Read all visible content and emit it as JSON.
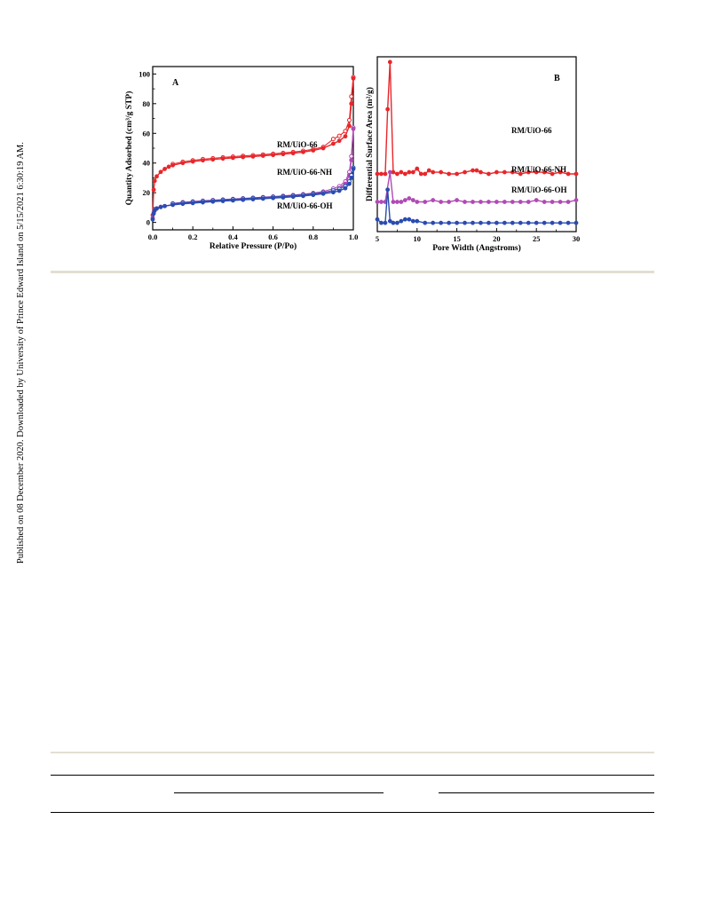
{
  "side_note": "Published on 08 December 2020. Downloaded by University of Prince Edward Island on 5/15/2021 6:30:19 AM.",
  "colors": {
    "red": "#e8262a",
    "magenta": "#b04ab4",
    "blue": "#2a4cb0",
    "rule_tan": "#e2dfd2"
  },
  "chart_data": [
    {
      "type": "line",
      "panel_label": "A",
      "xlabel": "Relative Pressure (P/Po)",
      "ylabel": "Quantity Adsorbed (cm³/g STP)",
      "xlim": [
        0,
        1.0
      ],
      "ylim": [
        -5,
        105
      ],
      "x_ticks": [
        "0.0",
        "0.2",
        "0.4",
        "0.6",
        "0.8",
        "1.0"
      ],
      "y_ticks": [
        "0",
        "20",
        "40",
        "60",
        "80",
        "100"
      ],
      "grid": false,
      "series": [
        {
          "name": "RM/UiO-66",
          "color": "#e8262a",
          "x": [
            0.0,
            0.005,
            0.01,
            0.02,
            0.04,
            0.06,
            0.08,
            0.1,
            0.15,
            0.2,
            0.25,
            0.3,
            0.35,
            0.4,
            0.45,
            0.5,
            0.55,
            0.6,
            0.65,
            0.7,
            0.75,
            0.8,
            0.85,
            0.9,
            0.93,
            0.96,
            0.98,
            0.99,
            1.0
          ],
          "y": [
            5,
            22,
            28,
            31,
            34,
            36,
            37.5,
            38.5,
            40,
            41,
            41.8,
            42.4,
            43,
            43.5,
            44,
            44.4,
            44.9,
            45.4,
            46,
            46.6,
            47.4,
            48.5,
            50,
            53,
            55,
            58,
            65,
            80,
            97
          ]
        },
        {
          "name": "RM/UiO-66-NH",
          "color": "#b04ab4",
          "x": [
            0.0,
            0.005,
            0.01,
            0.02,
            0.04,
            0.06,
            0.1,
            0.15,
            0.2,
            0.25,
            0.3,
            0.35,
            0.4,
            0.45,
            0.5,
            0.55,
            0.6,
            0.65,
            0.7,
            0.75,
            0.8,
            0.85,
            0.9,
            0.93,
            0.96,
            0.98,
            0.99,
            1.0
          ],
          "y": [
            3,
            7,
            8.5,
            9.5,
            10.5,
            11,
            12,
            12.8,
            13.3,
            13.8,
            14.2,
            14.6,
            15,
            15.4,
            15.8,
            16.2,
            16.6,
            17.1,
            17.6,
            18.2,
            19,
            20,
            21.5,
            23,
            26,
            32,
            42,
            63
          ]
        },
        {
          "name": "RM/UiO-66-OH",
          "color": "#2a4cb0",
          "x": [
            0.0,
            0.005,
            0.01,
            0.02,
            0.04,
            0.06,
            0.1,
            0.15,
            0.2,
            0.25,
            0.3,
            0.35,
            0.4,
            0.45,
            0.5,
            0.55,
            0.6,
            0.65,
            0.7,
            0.75,
            0.8,
            0.85,
            0.9,
            0.93,
            0.96,
            0.98,
            0.99,
            1.0
          ],
          "y": [
            2,
            6,
            8,
            9.3,
            10.3,
            11,
            11.8,
            12.5,
            13,
            13.5,
            14,
            14.4,
            14.8,
            15.2,
            15.6,
            16,
            16.4,
            16.8,
            17.3,
            17.8,
            18.5,
            19.3,
            20.3,
            21.3,
            23,
            26,
            30,
            36
          ]
        }
      ]
    },
    {
      "type": "line",
      "panel_label": "B",
      "xlabel": "Pore Width (Angstroms)",
      "ylabel": "Differential Surface Area (m²/g)",
      "xlim": [
        5,
        30
      ],
      "ylim": [
        0,
        100
      ],
      "x_ticks": [
        "5",
        "10",
        "15",
        "20",
        "25",
        "30"
      ],
      "grid": false,
      "series": [
        {
          "name": "RM/UiO-66",
          "color": "#e8262a",
          "x": [
            5,
            5.5,
            6.0,
            6.3,
            6.6,
            7.0,
            7.5,
            8.0,
            8.5,
            9.0,
            9.5,
            10.0,
            10.5,
            11,
            11.5,
            12,
            13,
            14,
            15,
            16,
            17,
            17.5,
            18,
            19,
            20,
            21,
            22,
            23,
            24,
            25,
            26,
            27,
            28,
            29,
            30
          ],
          "y": [
            33,
            33,
            33,
            70,
            97,
            34,
            33,
            34,
            33,
            34,
            34,
            36,
            33,
            33,
            35,
            34,
            34,
            33,
            33,
            34,
            35,
            35,
            34,
            33,
            34,
            34,
            34,
            33,
            34,
            34,
            34,
            33,
            34,
            33,
            33
          ]
        },
        {
          "name": "RM/UiO-66-NH",
          "color": "#b04ab4",
          "x": [
            5,
            5.5,
            6.0,
            6.6,
            7.0,
            7.5,
            8.0,
            8.5,
            9.0,
            9.5,
            10,
            11,
            12,
            13,
            14,
            15,
            16,
            17,
            18,
            19,
            20,
            21,
            22,
            23,
            24,
            25,
            26,
            27,
            28,
            29,
            30
          ],
          "y": [
            17,
            17,
            17,
            34,
            17,
            17,
            17,
            18,
            19,
            18,
            17,
            17,
            18,
            17,
            17,
            18,
            17,
            17,
            17,
            17,
            17,
            17,
            17,
            17,
            17,
            18,
            17,
            17,
            17,
            17,
            18
          ]
        },
        {
          "name": "RM/UiO-66-OH",
          "color": "#2a4cb0",
          "x": [
            5,
            5.5,
            6.0,
            6.3,
            6.6,
            7.0,
            7.5,
            8.0,
            8.5,
            9.0,
            9.5,
            10,
            11,
            12,
            13,
            14,
            15,
            16,
            17,
            18,
            19,
            20,
            21,
            22,
            23,
            24,
            25,
            26,
            27,
            28,
            29,
            30
          ],
          "y": [
            7,
            5,
            5,
            24,
            6,
            5,
            5,
            6,
            7,
            7,
            6,
            6,
            5,
            5,
            5,
            5,
            5,
            5,
            5,
            5,
            5,
            5,
            5,
            5,
            5,
            5,
            5,
            5,
            5,
            5,
            5,
            5
          ]
        }
      ]
    }
  ]
}
